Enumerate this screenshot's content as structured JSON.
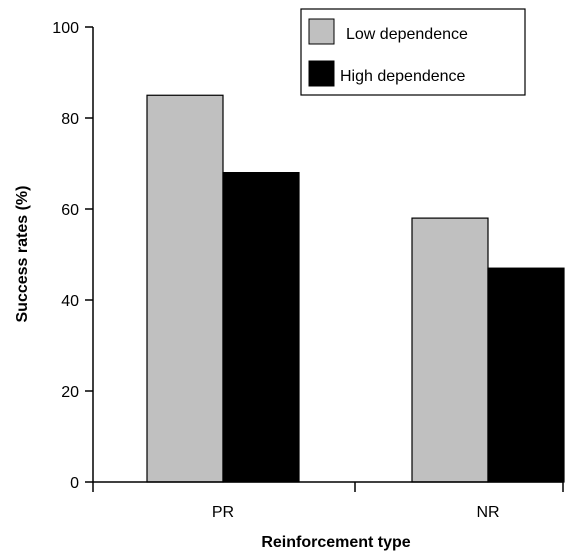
{
  "chart_data": {
    "type": "bar",
    "categories": [
      "PR",
      "NR"
    ],
    "series": [
      {
        "name": "Low dependence",
        "values": [
          85,
          58
        ],
        "color": "#c0c0c0"
      },
      {
        "name": "High dependence",
        "values": [
          68,
          47
        ],
        "color": "#000000"
      }
    ],
    "xlabel": "Reinforcement type",
    "ylabel": "Success rates (%)",
    "ylim": [
      0,
      100
    ],
    "yticks": [
      "0",
      "20",
      "40",
      "60",
      "80",
      "100"
    ],
    "grid": false,
    "legend_position": "top-right"
  }
}
